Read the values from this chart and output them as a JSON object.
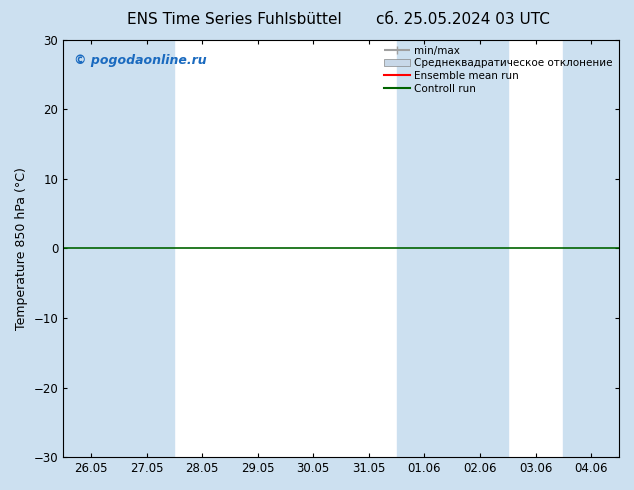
{
  "title_left": "ENS Time Series Fuhlsbüttel",
  "title_right": "сб. 25.05.2024 03 UTC",
  "ylabel": "Temperature 850 hPa (°C)",
  "ylim": [
    -30,
    30
  ],
  "yticks": [
    -30,
    -20,
    -10,
    0,
    10,
    20,
    30
  ],
  "xlabels": [
    "26.05",
    "27.05",
    "28.05",
    "29.05",
    "30.05",
    "31.05",
    "01.06",
    "02.06",
    "03.06",
    "04.06"
  ],
  "watermark": "© pogodaonline.ru",
  "legend_entries": [
    "min/max",
    "Среднеквадратическое отклонение",
    "Ensemble mean run",
    "Controll run"
  ],
  "legend_line_colors": [
    "#a0a0a0",
    "#c8d8e8",
    "#ff0000",
    "#006400"
  ],
  "shaded_band_indices": [
    0,
    1,
    6,
    7,
    9
  ],
  "shade_color": "#cce0f0",
  "figure_bg_color": "#cce0f0",
  "plot_bg_color": "#ffffff",
  "zero_line_color": "#006400",
  "spine_color": "#000000",
  "title_fontsize": 11,
  "label_fontsize": 9,
  "tick_fontsize": 8.5,
  "watermark_color": "#1a6abf"
}
